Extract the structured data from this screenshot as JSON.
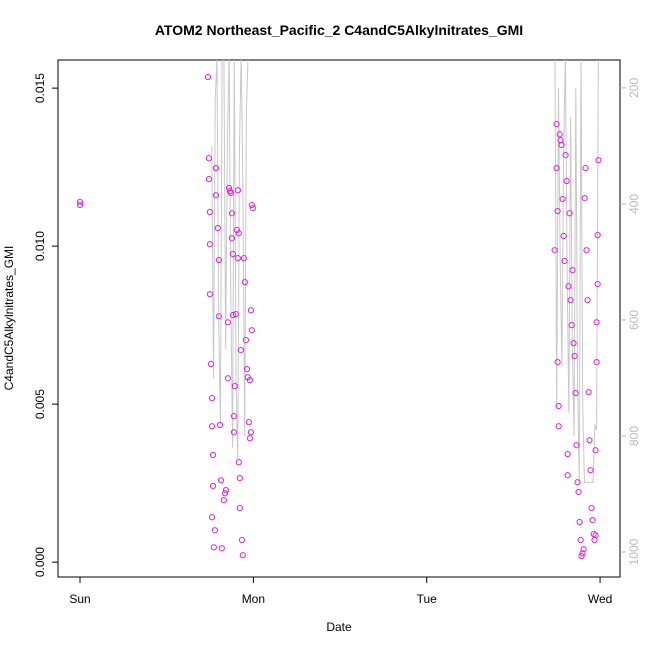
{
  "chart_data": {
    "type": "scatter",
    "title": "ATOM2 Northeast_Pacific_2 C4andC5Alkylnitrates_GMI",
    "x_label": "Date",
    "y_label": "C4andC5Alkylnitrates_GMI",
    "xlim": [
      -0.127,
      3.115
    ],
    "ylim": [
      -0.00047,
      0.01589
    ],
    "y2lim": [
      1043,
      152
    ],
    "xticks": [
      {
        "value": 0,
        "label": "Sun"
      },
      {
        "value": 1,
        "label": "Mon"
      },
      {
        "value": 2,
        "label": "Tue"
      },
      {
        "value": 3,
        "label": "Wed"
      }
    ],
    "yticks": [
      {
        "value": 0,
        "label": "0.000"
      },
      {
        "value": 0.005,
        "label": "0.005"
      },
      {
        "value": 0.01,
        "label": "0.010"
      },
      {
        "value": 0.015,
        "label": "0.015"
      }
    ],
    "y2ticks": [
      200,
      400,
      600,
      800,
      1000
    ],
    "series": [
      {
        "kind": "points",
        "color": "#e020e0",
        "x": [
          0.0,
          0.0,
          0.738,
          0.744,
          0.744,
          0.749,
          0.749,
          0.749,
          0.755,
          0.761,
          0.761,
          0.767,
          0.767,
          0.761,
          0.772,
          0.778,
          0.784,
          0.784,
          0.795,
          0.801,
          0.801,
          0.807,
          0.813,
          0.818,
          0.83,
          0.836,
          0.842,
          0.853,
          0.853,
          0.859,
          0.865,
          0.87,
          0.876,
          0.876,
          0.882,
          0.882,
          0.888,
          0.888,
          0.893,
          0.899,
          0.905,
          0.911,
          0.911,
          0.916,
          0.916,
          0.922,
          0.922,
          0.928,
          0.934,
          0.939,
          0.945,
          0.951,
          0.957,
          0.963,
          0.968,
          0.974,
          0.98,
          0.98,
          0.986,
          0.991,
          0.991,
          0.997,
          0.986,
          2.738,
          2.749,
          2.749,
          2.755,
          2.755,
          2.761,
          2.761,
          2.767,
          2.772,
          2.778,
          2.784,
          2.79,
          2.795,
          2.801,
          2.807,
          2.813,
          2.813,
          2.818,
          2.824,
          2.83,
          2.836,
          2.841,
          2.847,
          2.853,
          2.859,
          2.864,
          2.87,
          2.876,
          2.882,
          2.888,
          2.893,
          2.899,
          2.905,
          2.911,
          2.916,
          2.922,
          2.928,
          2.934,
          2.939,
          2.945,
          2.951,
          2.957,
          2.963,
          2.968,
          2.974,
          2.98,
          2.98,
          2.986,
          2.986,
          2.991,
          2.974
        ],
        "values": [
          0.0114,
          0.0113,
          0.01535,
          0.01278,
          0.01212,
          0.01108,
          0.01006,
          0.00848,
          0.00627,
          0.00519,
          0.0043,
          0.00339,
          0.00241,
          0.00142,
          0.00047,
          0.00101,
          0.01247,
          0.01161,
          0.01057,
          0.00956,
          0.00778,
          0.00434,
          0.00259,
          0.00044,
          0.00196,
          0.00218,
          0.00228,
          0.00582,
          0.00759,
          0.01184,
          0.01174,
          0.01168,
          0.01104,
          0.01025,
          0.00975,
          0.00782,
          0.00462,
          0.00411,
          0.00557,
          0.00785,
          0.01051,
          0.01177,
          0.00962,
          0.01041,
          0.00316,
          0.00266,
          0.00171,
          0.00671,
          0.0007,
          0.00022,
          0.00962,
          0.00886,
          0.00703,
          0.00611,
          0.00585,
          0.00443,
          0.00576,
          0.00392,
          0.00797,
          0.00734,
          0.0113,
          0.0112,
          0.00411,
          0.00987,
          0.01386,
          0.01247,
          0.01111,
          0.00633,
          0.00494,
          0.0043,
          0.01354,
          0.01335,
          0.0132,
          0.01149,
          0.01032,
          0.00953,
          0.01288,
          0.01206,
          0.00342,
          0.00275,
          0.00873,
          0.01104,
          0.00829,
          0.0075,
          0.00924,
          0.00693,
          0.00652,
          0.00535,
          0.0037,
          0.00253,
          0.00222,
          0.00127,
          0.0007,
          0.00019,
          0.00028,
          0.00041,
          0.01152,
          0.01247,
          0.00987,
          0.00829,
          0.00538,
          0.00386,
          0.00291,
          0.00171,
          0.00133,
          0.00089,
          0.0007,
          0.00085,
          0.00759,
          0.00633,
          0.0088,
          0.01035,
          0.01272,
          0.00354
        ]
      },
      {
        "kind": "line",
        "axis": "y2",
        "color": "#c8c8c8",
        "x": [
          0.76,
          0.77,
          0.78,
          0.79,
          0.8,
          0.81,
          0.82,
          0.83,
          0.84,
          0.85,
          0.86,
          0.87,
          0.88,
          0.89,
          0.9,
          0.91,
          0.92,
          0.93,
          0.94,
          0.95,
          0.96,
          0.97,
          0.98,
          0.99,
          1.0,
          1.5,
          2.72,
          2.74,
          2.75,
          2.76,
          2.77,
          2.78,
          2.79,
          2.8,
          2.81,
          2.82,
          2.83,
          2.84,
          2.85,
          2.86,
          2.87,
          2.88,
          2.89,
          2.9,
          2.91,
          2.92,
          2.93,
          2.94,
          2.95,
          2.96,
          2.97,
          2.98,
          2.99,
          3.0
        ],
        "values": [
          300,
          700,
          220,
          150,
          600,
          780,
          140,
          140,
          650,
          300,
          140,
          560,
          820,
          140,
          700,
          840,
          300,
          140,
          380,
          800,
          240,
          140,
          140,
          140,
          140,
          null,
          140,
          150,
          750,
          200,
          500,
          680,
          300,
          140,
          520,
          760,
          250,
          640,
          800,
          200,
          700,
          880,
          140,
          750,
          880,
          880,
          880,
          880,
          880,
          880,
          780,
          790,
          140,
          140
        ]
      }
    ]
  }
}
